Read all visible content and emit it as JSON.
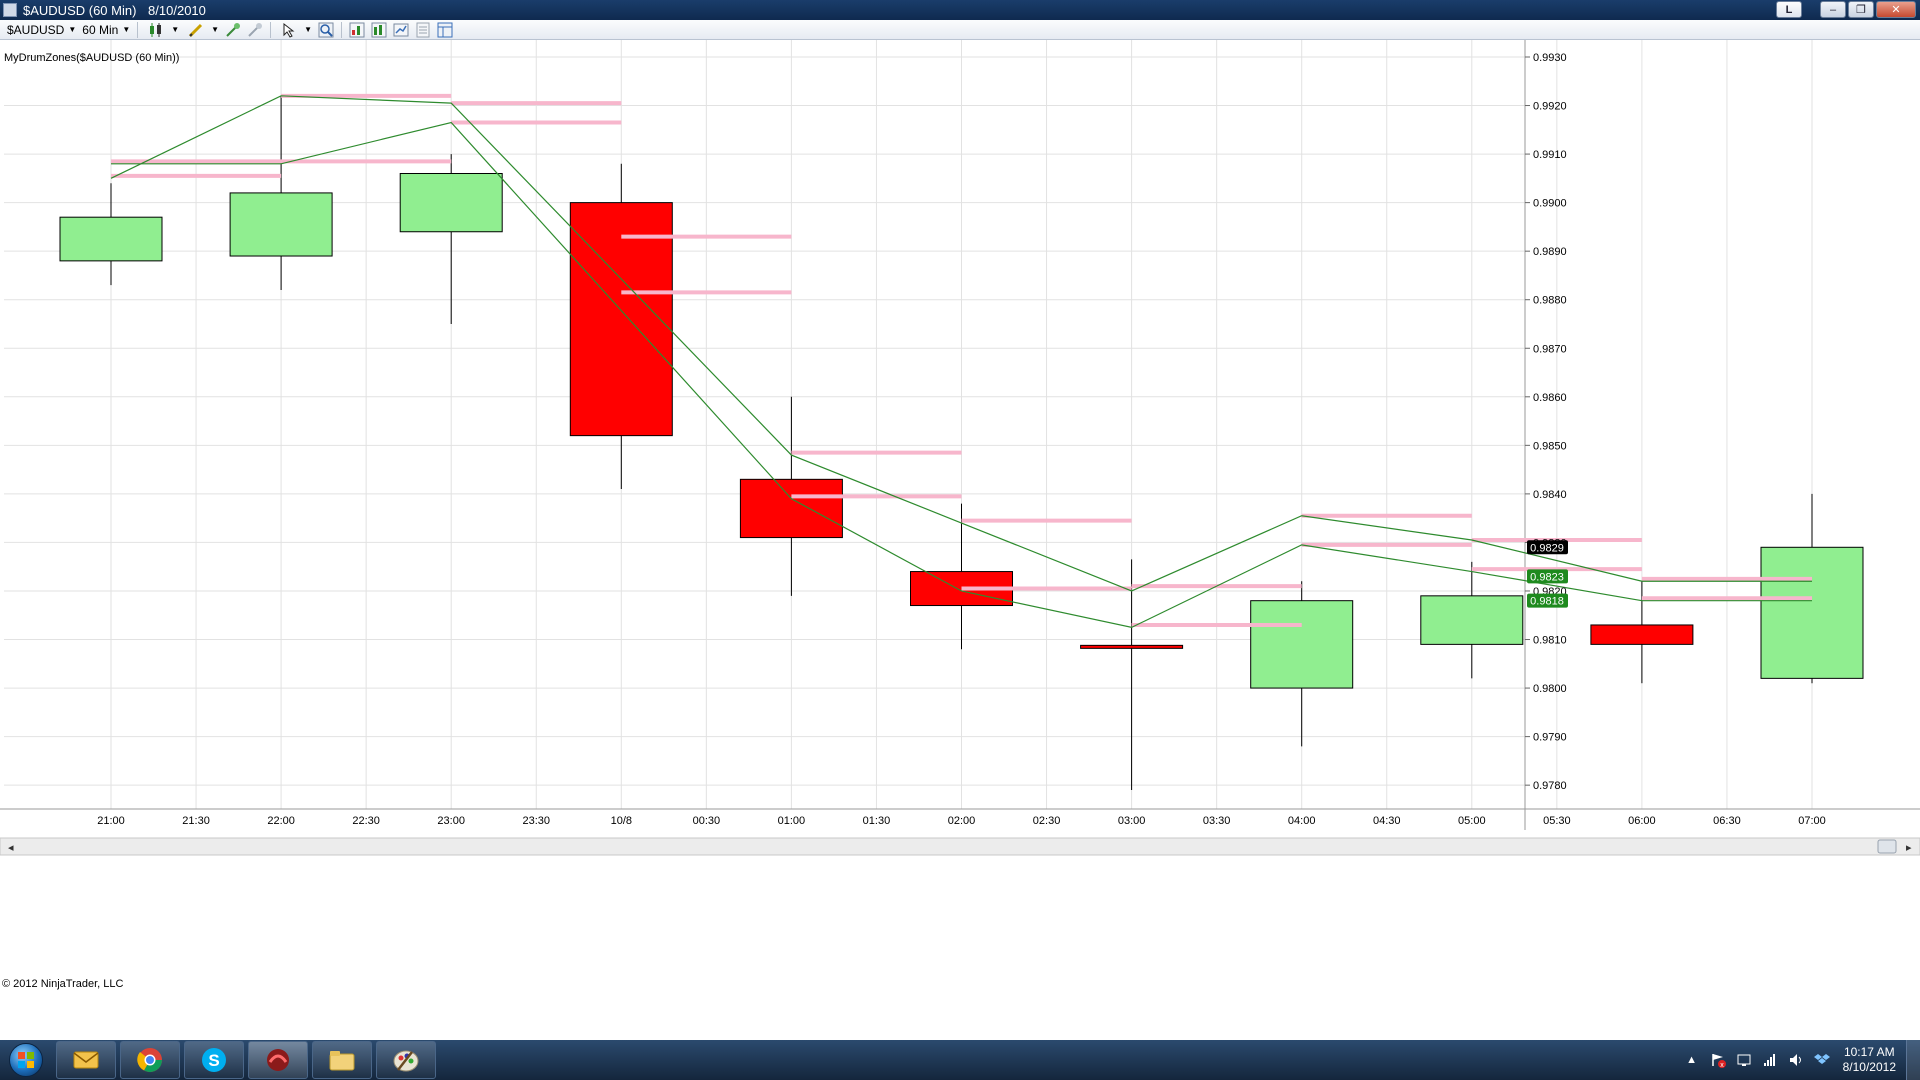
{
  "window": {
    "title": "$AUDUSD (60 Min)",
    "date": "8/10/2010",
    "link_button": "L"
  },
  "toolbar": {
    "instrument": "$AUDUSD",
    "interval": "60 Min"
  },
  "chart": {
    "indicator_label": "MyDrumZones($AUDUSD (60 Min))",
    "copyright": "© 2012 NinjaTrader, LLC",
    "price_badges": [
      "0.9829",
      "0.9823",
      "0.9818"
    ]
  },
  "chart_data": {
    "type": "candlestick",
    "y_ticks": [
      "0.9930",
      "0.9920",
      "0.9910",
      "0.9900",
      "0.9890",
      "0.9880",
      "0.9870",
      "0.9860",
      "0.9850",
      "0.9840",
      "0.9830",
      "0.9820",
      "0.9810",
      "0.9800",
      "0.9790",
      "0.9780"
    ],
    "x_ticks": [
      "21:00",
      "21:30",
      "22:00",
      "22:30",
      "23:00",
      "23:30",
      "10/8",
      "00:30",
      "01:00",
      "01:30",
      "02:00",
      "02:30",
      "03:00",
      "03:30",
      "04:00",
      "04:30",
      "05:00",
      "05:30",
      "06:00",
      "06:30",
      "07:00"
    ],
    "ylim": [
      0.97755,
      0.99335
    ],
    "grid": true,
    "candles": [
      {
        "time": "21:00",
        "open": 0.9888,
        "high": 0.9904,
        "low": 0.9883,
        "close": 0.9897
      },
      {
        "time": "22:00",
        "open": 0.9889,
        "high": 0.9922,
        "low": 0.9882,
        "close": 0.9902
      },
      {
        "time": "23:00",
        "open": 0.9894,
        "high": 0.991,
        "low": 0.9875,
        "close": 0.9906
      },
      {
        "time": "10/8",
        "open": 0.99,
        "high": 0.9908,
        "low": 0.9841,
        "close": 0.9852
      },
      {
        "time": "01:00",
        "open": 0.9843,
        "high": 0.986,
        "low": 0.9819,
        "close": 0.9831
      },
      {
        "time": "02:00",
        "open": 0.9824,
        "high": 0.9838,
        "low": 0.9808,
        "close": 0.9817
      },
      {
        "time": "03:00",
        "open": 0.98088,
        "high": 0.98265,
        "low": 0.9779,
        "close": 0.98082
      },
      {
        "time": "04:00",
        "open": 0.98,
        "high": 0.9822,
        "low": 0.9788,
        "close": 0.9818
      },
      {
        "time": "05:00",
        "open": 0.9809,
        "high": 0.9826,
        "low": 0.9802,
        "close": 0.9819
      },
      {
        "time": "06:00",
        "open": 0.9813,
        "high": 0.9822,
        "low": 0.9801,
        "close": 0.9809
      },
      {
        "time": "07:00",
        "open": 0.9802,
        "high": 0.984,
        "low": 0.9801,
        "close": 0.9829
      }
    ],
    "green_lines": [
      {
        "points": [
          [
            "21:00",
            0.9905
          ],
          [
            "22:00",
            0.9922
          ],
          [
            "23:00",
            0.99205
          ],
          [
            "01:00",
            0.9848
          ],
          [
            "02:00",
            0.9834
          ],
          [
            "03:00",
            0.982
          ],
          [
            "04:00",
            0.98355
          ],
          [
            "05:00",
            0.98305
          ],
          [
            "06:00",
            0.9822
          ],
          [
            "07:00",
            0.9822
          ]
        ]
      },
      {
        "points": [
          [
            "21:00",
            0.9908
          ],
          [
            "22:00",
            0.9908
          ],
          [
            "23:00",
            0.99165
          ],
          [
            "01:00",
            0.9839
          ],
          [
            "02:00",
            0.982
          ],
          [
            "03:00",
            0.98125
          ],
          [
            "04:00",
            0.98295
          ],
          [
            "05:00",
            0.9824
          ],
          [
            "06:00",
            0.9818
          ],
          [
            "07:00",
            0.9818
          ]
        ]
      }
    ],
    "zone_lines": [
      {
        "from": "21:00",
        "to": "22:00",
        "value": 0.99055
      },
      {
        "from": "21:00",
        "to": "23:00",
        "value": 0.99085
      },
      {
        "from": "22:00",
        "to": "23:00",
        "value": 0.9922
      },
      {
        "from": "23:00",
        "to": "10/8",
        "value": 0.99205
      },
      {
        "from": "23:00",
        "to": "10/8",
        "value": 0.99165
      },
      {
        "from": "10/8",
        "to": "01:00",
        "value": 0.9893
      },
      {
        "from": "10/8",
        "to": "01:00",
        "value": 0.98815
      },
      {
        "from": "01:00",
        "to": "02:00",
        "value": 0.98485
      },
      {
        "from": "01:00",
        "to": "02:00",
        "value": 0.98395
      },
      {
        "from": "02:00",
        "to": "03:00",
        "value": 0.98345
      },
      {
        "from": "02:00",
        "to": "03:00",
        "value": 0.98205
      },
      {
        "from": "03:00",
        "to": "04:00",
        "value": 0.9821
      },
      {
        "from": "03:00",
        "to": "04:00",
        "value": 0.9813
      },
      {
        "from": "04:00",
        "to": "05:00",
        "value": 0.98355
      },
      {
        "from": "04:00",
        "to": "05:00",
        "value": 0.98295
      },
      {
        "from": "05:00",
        "to": "06:00",
        "value": 0.98305
      },
      {
        "from": "05:00",
        "to": "06:00",
        "value": 0.98245
      },
      {
        "from": "06:00",
        "to": "07:00",
        "value": 0.98225
      },
      {
        "from": "06:00",
        "to": "07:00",
        "value": 0.98185
      }
    ]
  },
  "taskbar": {
    "clock_time": "10:17 AM",
    "clock_date": "8/10/2012"
  },
  "colors": {
    "up_candle": "#90ee90",
    "down_candle": "#ff0000",
    "zone_line": "#f7b6cc",
    "trend_line": "#2e8b2e",
    "grid": "#e2e2e2"
  }
}
